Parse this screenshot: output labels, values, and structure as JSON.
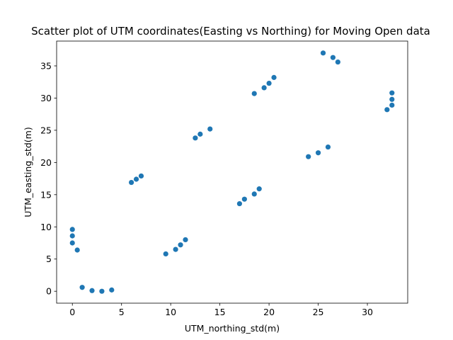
{
  "chart_data": {
    "type": "scatter",
    "title": "Scatter plot of UTM coordinates(Easting vs Northing) for Moving Open data",
    "xlabel": "UTM_northing_std(m)",
    "ylabel": "UTM_easting_std(m)",
    "xlim": [
      -1.6,
      34.1
    ],
    "ylim": [
      -1.85,
      38.85
    ],
    "xticks": [
      0,
      5,
      10,
      15,
      20,
      25,
      30
    ],
    "yticks": [
      0,
      5,
      10,
      15,
      20,
      25,
      30,
      35
    ],
    "marker_color": "#1f77b4",
    "grid": false,
    "series": [
      {
        "name": "Moving Open data",
        "points": [
          [
            0,
            9.6
          ],
          [
            0,
            8.6
          ],
          [
            0,
            7.5
          ],
          [
            0.5,
            6.4
          ],
          [
            1,
            0.6
          ],
          [
            2,
            0.1
          ],
          [
            3,
            0.0
          ],
          [
            4,
            0.2
          ],
          [
            6,
            16.9
          ],
          [
            6.5,
            17.4
          ],
          [
            7,
            17.9
          ],
          [
            9.5,
            5.8
          ],
          [
            10.5,
            6.5
          ],
          [
            11,
            7.2
          ],
          [
            11.5,
            8.0
          ],
          [
            12.5,
            23.8
          ],
          [
            13,
            24.4
          ],
          [
            14,
            25.2
          ],
          [
            17,
            13.6
          ],
          [
            17.5,
            14.3
          ],
          [
            18.5,
            15.1
          ],
          [
            19,
            15.9
          ],
          [
            18.5,
            30.7
          ],
          [
            19.5,
            31.6
          ],
          [
            20,
            32.3
          ],
          [
            20.5,
            33.2
          ],
          [
            24,
            20.9
          ],
          [
            25,
            21.5
          ],
          [
            26,
            22.4
          ],
          [
            25.5,
            37.0
          ],
          [
            26.5,
            36.3
          ],
          [
            27,
            35.6
          ],
          [
            32,
            28.2
          ],
          [
            32.5,
            28.9
          ],
          [
            32.5,
            29.8
          ],
          [
            32.5,
            30.8
          ]
        ]
      }
    ]
  }
}
